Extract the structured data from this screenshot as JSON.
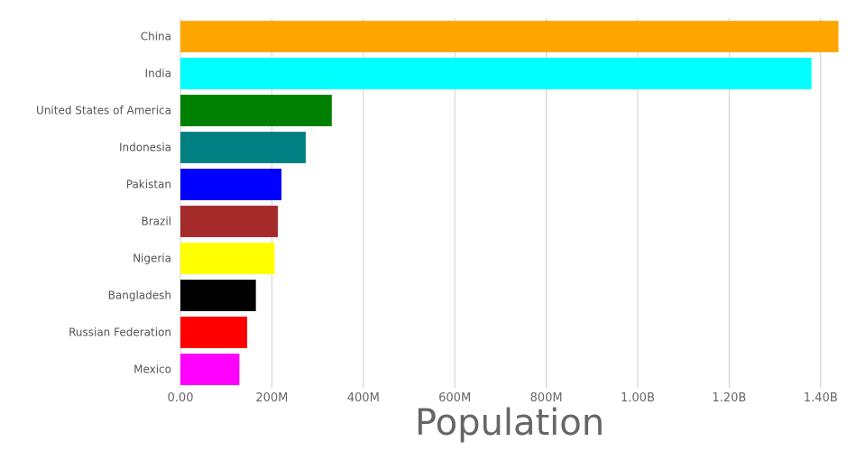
{
  "chart_data": {
    "type": "bar",
    "orientation": "horizontal",
    "title": "",
    "xlabel": "Population",
    "ylabel": "",
    "xlim": [
      0,
      1440000000
    ],
    "grid": true,
    "legend": "none",
    "x_ticks": [
      {
        "value": 0,
        "label": "0.00"
      },
      {
        "value": 200000000,
        "label": "200M"
      },
      {
        "value": 400000000,
        "label": "400M"
      },
      {
        "value": 600000000,
        "label": "600M"
      },
      {
        "value": 800000000,
        "label": "800M"
      },
      {
        "value": 1000000000,
        "label": "1.00B"
      },
      {
        "value": 1200000000,
        "label": "1.20B"
      },
      {
        "value": 1400000000,
        "label": "1.40B"
      }
    ],
    "categories": [
      "China",
      "India",
      "United States of America",
      "Indonesia",
      "Pakistan",
      "Brazil",
      "Nigeria",
      "Bangladesh",
      "Russian Federation",
      "Mexico"
    ],
    "values": [
      1439000000,
      1380000000,
      331000000,
      274000000,
      221000000,
      213000000,
      206000000,
      165000000,
      146000000,
      129000000
    ],
    "colors": [
      "#ffa500",
      "#00ffff",
      "#008000",
      "#008080",
      "#0000ff",
      "#a52a2a",
      "#ffff00",
      "#000000",
      "#ff0000",
      "#ff00ff"
    ]
  }
}
